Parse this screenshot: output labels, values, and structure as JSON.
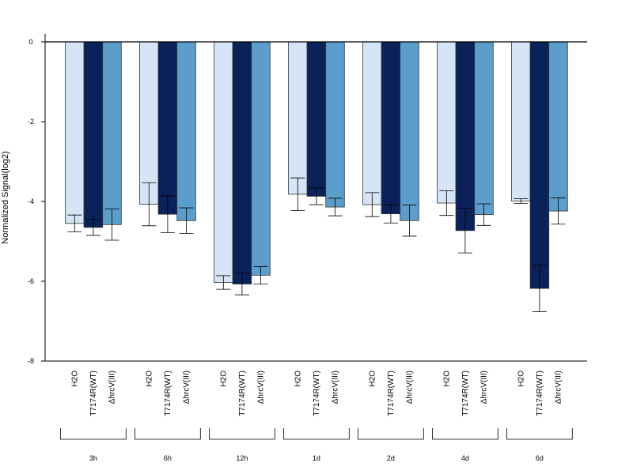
{
  "chart_data": {
    "type": "bar",
    "title": "",
    "xlabel": "",
    "ylabel": "Normalized Signal(log2)",
    "ylim": [
      -8,
      0.2
    ],
    "yticks": [
      "0",
      "-2",
      "-4",
      "-6",
      "-8"
    ],
    "grid": false,
    "legend": "none",
    "groups": [
      "3h",
      "6h",
      "12h",
      "1d",
      "2d",
      "4d",
      "6d"
    ],
    "bar_labels": [
      "H2O",
      "T7174R(WT)",
      "ΔhrcV(III)"
    ],
    "series": [
      {
        "color": "#d6e5f5",
        "values": [
          -4.55,
          -4.07,
          -6.03,
          -3.82,
          -4.08,
          -4.04,
          -3.99
        ],
        "errors": [
          0.21,
          0.54,
          0.17,
          0.41,
          0.3,
          0.31,
          0.06
        ]
      },
      {
        "color": "#0b2159",
        "values": [
          -4.65,
          -4.32,
          -6.07,
          -3.87,
          -4.31,
          -4.73,
          -6.18
        ],
        "errors": [
          0.2,
          0.46,
          0.27,
          0.21,
          0.23,
          0.56,
          0.58
        ]
      },
      {
        "color": "#5b9dcb",
        "values": [
          -4.58,
          -4.48,
          -5.85,
          -4.14,
          -4.48,
          -4.33,
          -4.24
        ],
        "errors": [
          0.39,
          0.32,
          0.22,
          0.22,
          0.39,
          0.27,
          0.33
        ]
      }
    ]
  }
}
